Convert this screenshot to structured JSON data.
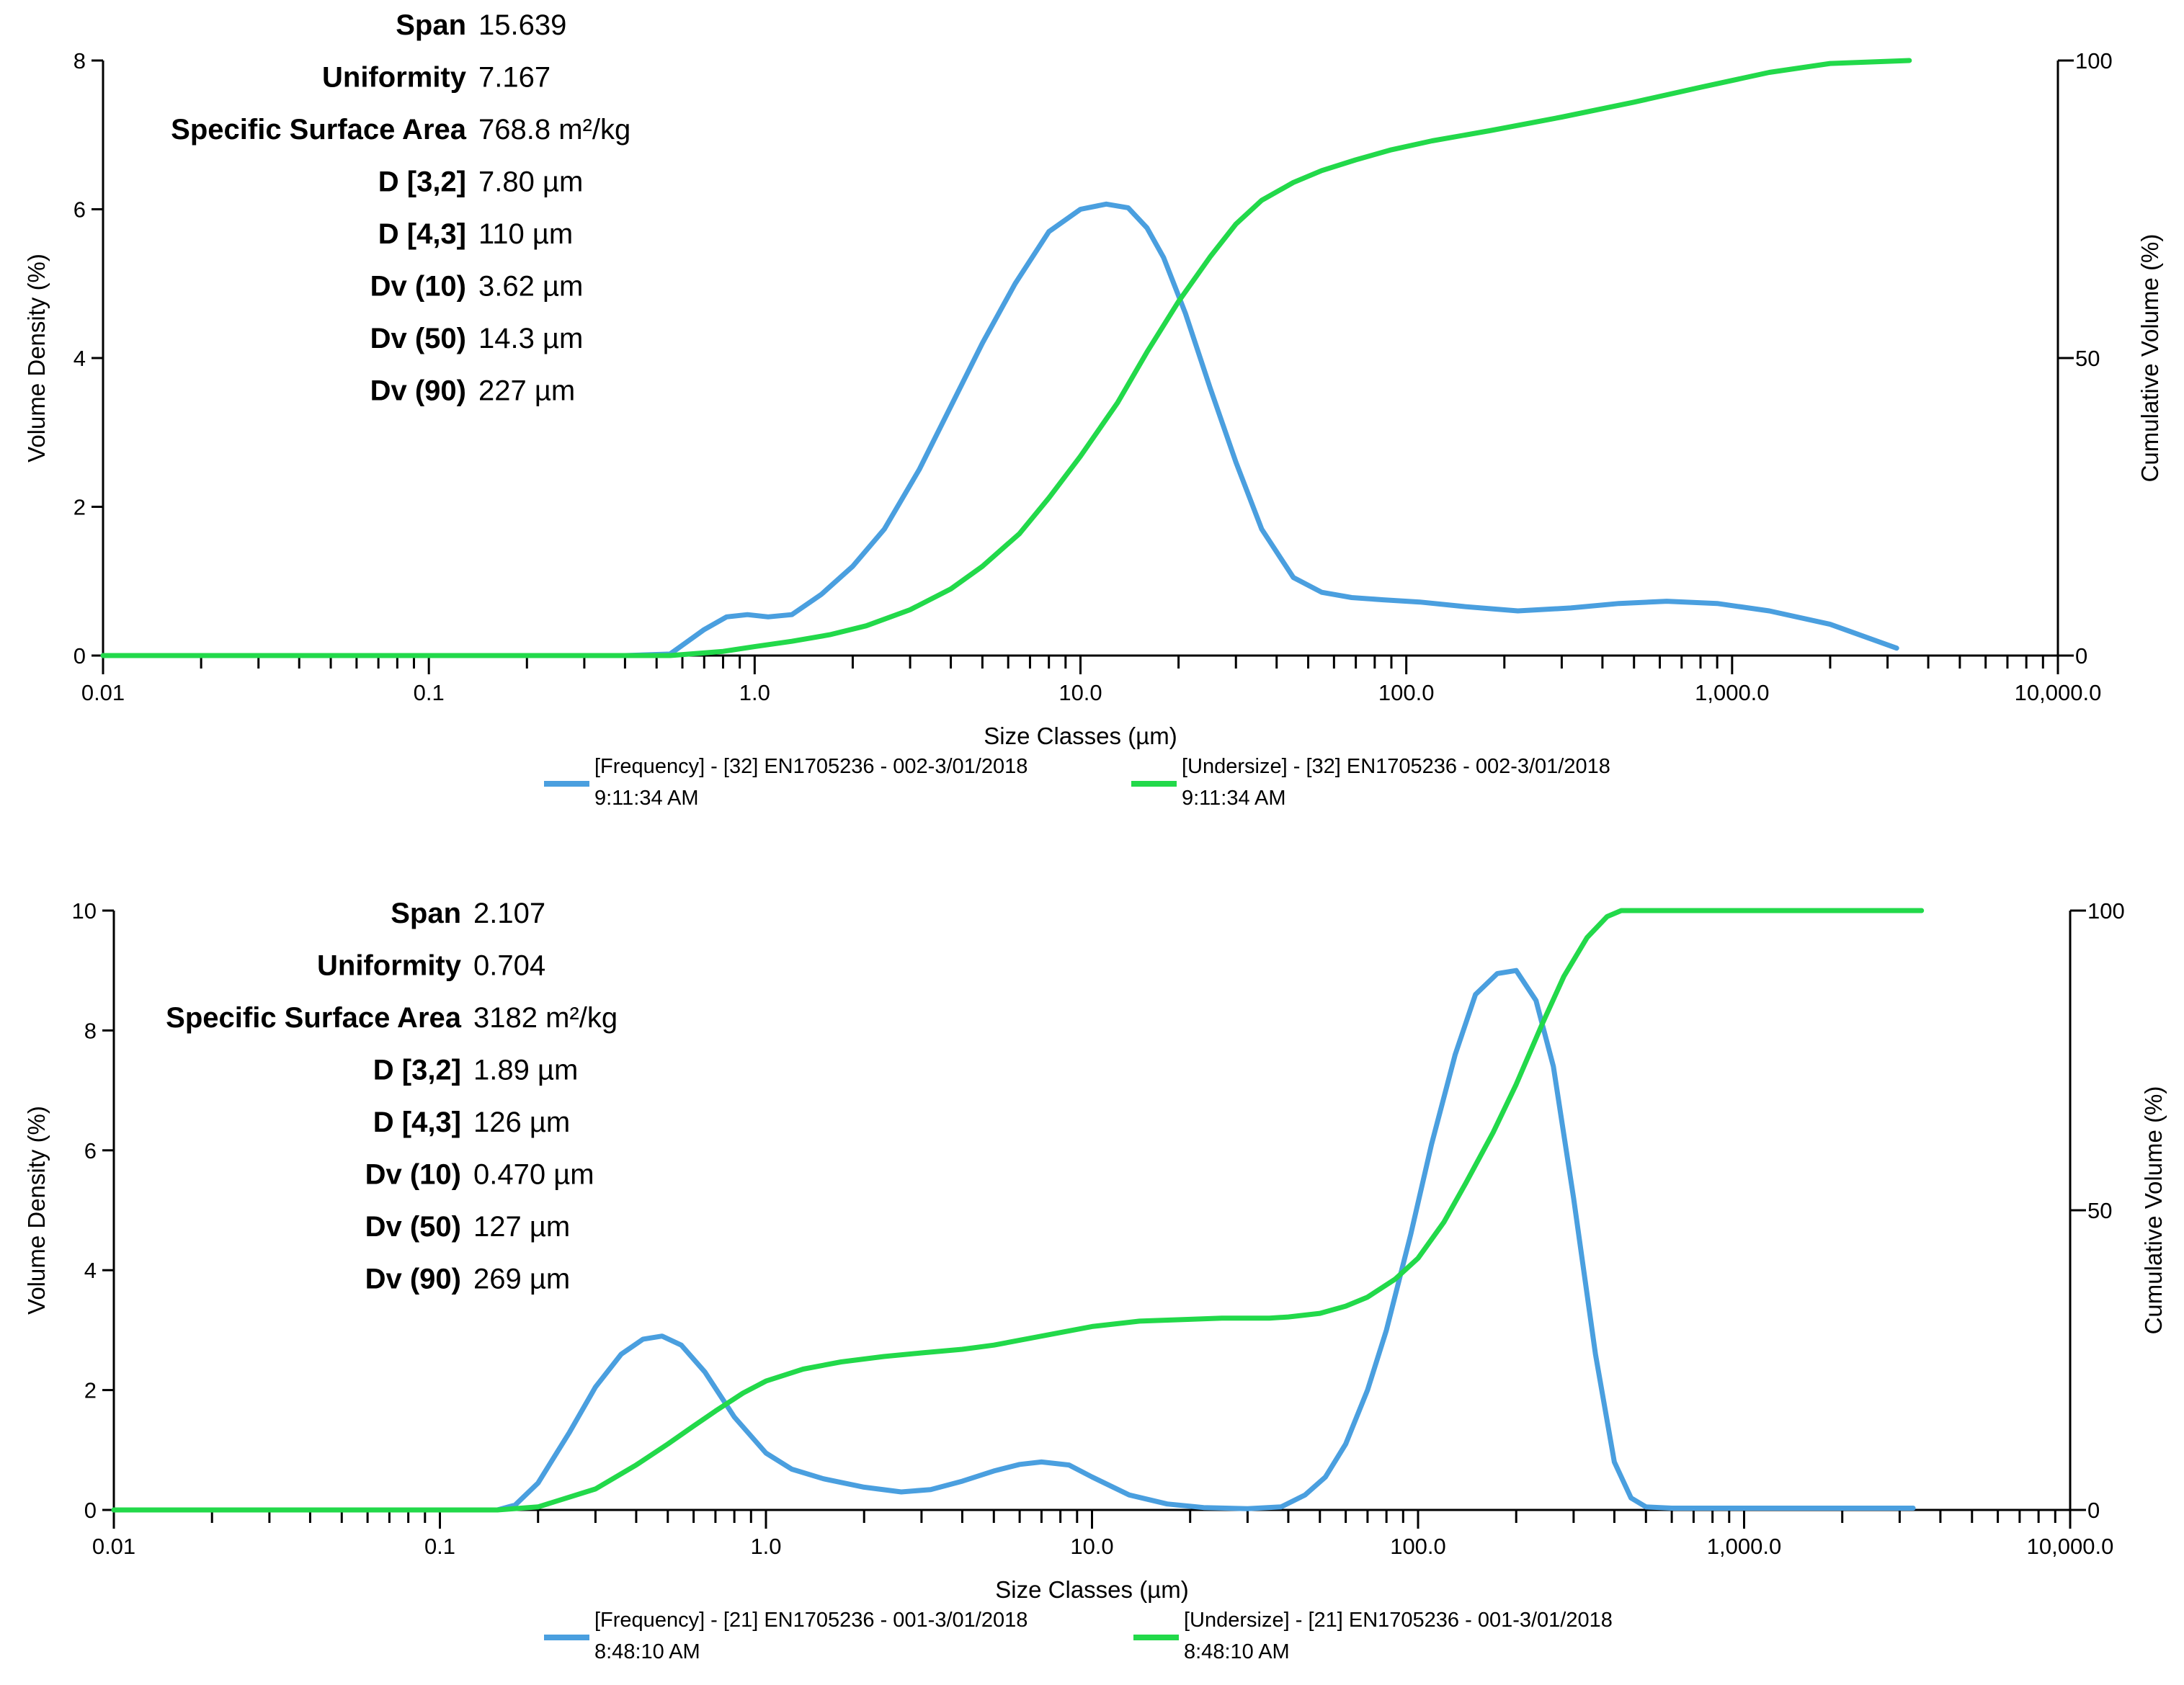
{
  "charts": [
    {
      "title": "",
      "xlabel": "Size Classes (µm)",
      "ylabel": "Volume Density (%)",
      "y2label": "Cumulative Volume (%)",
      "ylim": [
        0,
        8
      ],
      "y2lim": [
        0,
        100
      ],
      "xlim": [
        0.01,
        10000
      ],
      "xscale": "log",
      "xticks": [
        0.01,
        0.1,
        1,
        10,
        100,
        1000,
        10000
      ],
      "xtick_labels": [
        "0.01",
        "0.1",
        "1.0",
        "10.0",
        "100.0",
        "1,000.0",
        "10,000.0"
      ],
      "yticks": [
        0,
        2,
        4,
        6,
        8
      ],
      "ytick_labels": [
        "0",
        "2",
        "4",
        "6",
        "8"
      ],
      "y2ticks": [
        0,
        50,
        100
      ],
      "y2tick_labels": [
        "0",
        "50",
        "100"
      ],
      "stats": [
        {
          "label": "Span",
          "value": "15.639"
        },
        {
          "label": "Uniformity",
          "value": "7.167"
        },
        {
          "label": "Specific Surface Area",
          "value": "768.8 m²/kg"
        },
        {
          "label": "D [3,2]",
          "value": "7.80 µm"
        },
        {
          "label": "D [4,3]",
          "value": "110 µm"
        },
        {
          "label": "Dv (10)",
          "value": "3.62 µm"
        },
        {
          "label": "Dv (50)",
          "value": "14.3 µm"
        },
        {
          "label": "Dv (90)",
          "value": "227 µm"
        }
      ],
      "legend": [
        {
          "line1": "[Frequency] - [32] EN1705236 - 002-3/01/2018",
          "line2": "9:11:34 AM",
          "color": "#4A9FDF"
        },
        {
          "line1": "[Undersize] - [32] EN1705236 - 002-3/01/2018",
          "line2": "9:11:34 AM",
          "color": "#22D94A"
        }
      ]
    },
    {
      "title": "",
      "xlabel": "Size Classes (µm)",
      "ylabel": "Volume Density (%)",
      "y2label": "Cumulative Volume (%)",
      "ylim": [
        0,
        10
      ],
      "y2lim": [
        0,
        100
      ],
      "xlim": [
        0.01,
        10000
      ],
      "xscale": "log",
      "xticks": [
        0.01,
        0.1,
        1,
        10,
        100,
        1000,
        10000
      ],
      "xtick_labels": [
        "0.01",
        "0.1",
        "1.0",
        "10.0",
        "100.0",
        "1,000.0",
        "10,000.0"
      ],
      "yticks": [
        0,
        2,
        4,
        6,
        8,
        10
      ],
      "ytick_labels": [
        "0",
        "2",
        "4",
        "6",
        "8",
        "10"
      ],
      "y2ticks": [
        0,
        50,
        100
      ],
      "y2tick_labels": [
        "0",
        "50",
        "100"
      ],
      "stats": [
        {
          "label": "Span",
          "value": "2.107"
        },
        {
          "label": "Uniformity",
          "value": "0.704"
        },
        {
          "label": "Specific Surface Area",
          "value": "3182 m²/kg"
        },
        {
          "label": "D [3,2]",
          "value": "1.89 µm"
        },
        {
          "label": "D [4,3]",
          "value": "126 µm"
        },
        {
          "label": "Dv (10)",
          "value": "0.470 µm"
        },
        {
          "label": "Dv (50)",
          "value": "127 µm"
        },
        {
          "label": "Dv (90)",
          "value": "269 µm"
        }
      ],
      "legend": [
        {
          "line1": "[Frequency] - [21] EN1705236 - 001-3/01/2018",
          "line2": "8:48:10 AM",
          "color": "#4A9FDF"
        },
        {
          "line1": "[Undersize] - [21] EN1705236 - 001-3/01/2018",
          "line2": "8:48:10 AM",
          "color": "#22D94A"
        }
      ]
    }
  ],
  "chart_data": [
    {
      "type": "line",
      "xscale": "log",
      "title": "",
      "xlabel": "Size Classes (µm)",
      "ylabel": "Volume Density (%)",
      "y2label": "Cumulative Volume (%)",
      "xlim": [
        0.01,
        10000
      ],
      "ylim": [
        0,
        8
      ],
      "y2lim": [
        0,
        100
      ],
      "series": [
        {
          "name": "[Frequency] - [32] EN1705236 - 002-3/01/2018 9:11:34 AM",
          "axis": "left",
          "color": "#4A9FDF",
          "x": [
            0.01,
            0.4,
            0.55,
            0.7,
            0.82,
            0.95,
            1.1,
            1.3,
            1.6,
            2.0,
            2.5,
            3.2,
            4.0,
            5.0,
            6.3,
            8.0,
            10.0,
            12.0,
            14.0,
            16.0,
            18.0,
            21.0,
            25.0,
            30.0,
            36.0,
            45.0,
            55.0,
            68.0,
            85.0,
            110.0,
            150.0,
            220.0,
            320.0,
            450.0,
            630.0,
            900.0,
            1300.0,
            2000.0,
            3200.0
          ],
          "y": [
            0.0,
            0.0,
            0.02,
            0.35,
            0.52,
            0.55,
            0.52,
            0.55,
            0.82,
            1.2,
            1.7,
            2.5,
            3.35,
            4.2,
            5.0,
            5.7,
            6.0,
            6.07,
            6.02,
            5.75,
            5.35,
            4.6,
            3.6,
            2.6,
            1.7,
            1.05,
            0.85,
            0.78,
            0.75,
            0.72,
            0.66,
            0.6,
            0.64,
            0.7,
            0.73,
            0.7,
            0.6,
            0.42,
            0.1
          ]
        },
        {
          "name": "[Undersize] - [32] EN1705236 - 002-3/01/2018 9:11:34 AM",
          "axis": "right",
          "color": "#22D94A",
          "x": [
            0.01,
            0.55,
            0.8,
            1.0,
            1.3,
            1.7,
            2.2,
            3.0,
            4.0,
            5.0,
            6.5,
            8.0,
            10.0,
            13.0,
            16.0,
            20.0,
            25.0,
            30.0,
            36.0,
            45.0,
            55.0,
            70.0,
            90.0,
            120.0,
            180.0,
            300.0,
            500.0,
            800.0,
            1300.0,
            2000.0,
            3500.0
          ],
          "y": [
            0.0,
            0.0,
            0.7,
            1.5,
            2.4,
            3.5,
            5.0,
            7.7,
            11.2,
            15.0,
            20.5,
            26.5,
            33.5,
            42.5,
            51.0,
            59.5,
            67.0,
            72.5,
            76.5,
            79.5,
            81.5,
            83.3,
            85.0,
            86.5,
            88.2,
            90.5,
            93.0,
            95.5,
            98.0,
            99.5,
            100.0
          ]
        }
      ]
    },
    {
      "type": "line",
      "xscale": "log",
      "title": "",
      "xlabel": "Size Classes (µm)",
      "ylabel": "Volume Density (%)",
      "y2label": "Cumulative Volume (%)",
      "xlim": [
        0.01,
        10000
      ],
      "ylim": [
        0,
        10
      ],
      "y2lim": [
        0,
        100
      ],
      "series": [
        {
          "name": "[Frequency] - [21] EN1705236 - 001-3/01/2018 8:48:10 AM",
          "axis": "left",
          "color": "#4A9FDF",
          "x": [
            0.01,
            0.15,
            0.17,
            0.2,
            0.25,
            0.3,
            0.36,
            0.42,
            0.48,
            0.55,
            0.65,
            0.8,
            1.0,
            1.2,
            1.5,
            2.0,
            2.6,
            3.2,
            4.0,
            5.0,
            6.0,
            7.0,
            8.5,
            10.0,
            13.0,
            17.0,
            22.0,
            30.0,
            38.0,
            45.0,
            52.0,
            60.0,
            70.0,
            80.0,
            95.0,
            110.0,
            130.0,
            150.0,
            175.0,
            200.0,
            230.0,
            260.0,
            300.0,
            350.0,
            400.0,
            450.0,
            500.0,
            600.0,
            1000.0,
            2000.0,
            3300.0
          ],
          "y": [
            0.0,
            0.0,
            0.08,
            0.45,
            1.3,
            2.05,
            2.6,
            2.85,
            2.9,
            2.75,
            2.3,
            1.55,
            0.95,
            0.68,
            0.52,
            0.38,
            0.3,
            0.34,
            0.48,
            0.65,
            0.76,
            0.8,
            0.75,
            0.55,
            0.25,
            0.1,
            0.04,
            0.02,
            0.05,
            0.25,
            0.55,
            1.1,
            2.0,
            3.0,
            4.6,
            6.1,
            7.6,
            8.6,
            8.95,
            9.0,
            8.5,
            7.4,
            5.2,
            2.6,
            0.8,
            0.2,
            0.05,
            0.03,
            0.03,
            0.03,
            0.03
          ]
        },
        {
          "name": "[Undersize] - [21] EN1705236 - 001-3/01/2018 8:48:10 AM",
          "axis": "right",
          "color": "#22D94A",
          "x": [
            0.01,
            0.15,
            0.2,
            0.3,
            0.4,
            0.5,
            0.6,
            0.7,
            0.85,
            1.0,
            1.3,
            1.7,
            2.3,
            3.0,
            4.0,
            5.0,
            7.0,
            10.0,
            14.0,
            20.0,
            25.0,
            30.0,
            35.0,
            40.0,
            50.0,
            60.0,
            70.0,
            85.0,
            100.0,
            120.0,
            140.0,
            170.0,
            200.0,
            240.0,
            280.0,
            330.0,
            380.0,
            420.0,
            500.0,
            1000.0,
            2000.0,
            3500.0
          ],
          "y": [
            0.0,
            0.0,
            0.5,
            3.5,
            7.5,
            11.0,
            14.0,
            16.5,
            19.5,
            21.5,
            23.5,
            24.7,
            25.6,
            26.2,
            26.8,
            27.5,
            29.0,
            30.6,
            31.5,
            31.8,
            32.0,
            32.0,
            32.0,
            32.2,
            32.8,
            34.0,
            35.5,
            38.5,
            42.0,
            48.0,
            54.5,
            63.0,
            71.0,
            81.0,
            89.0,
            95.5,
            99.0,
            100.0,
            100.0,
            100.0,
            100.0,
            100.0
          ]
        }
      ]
    }
  ]
}
